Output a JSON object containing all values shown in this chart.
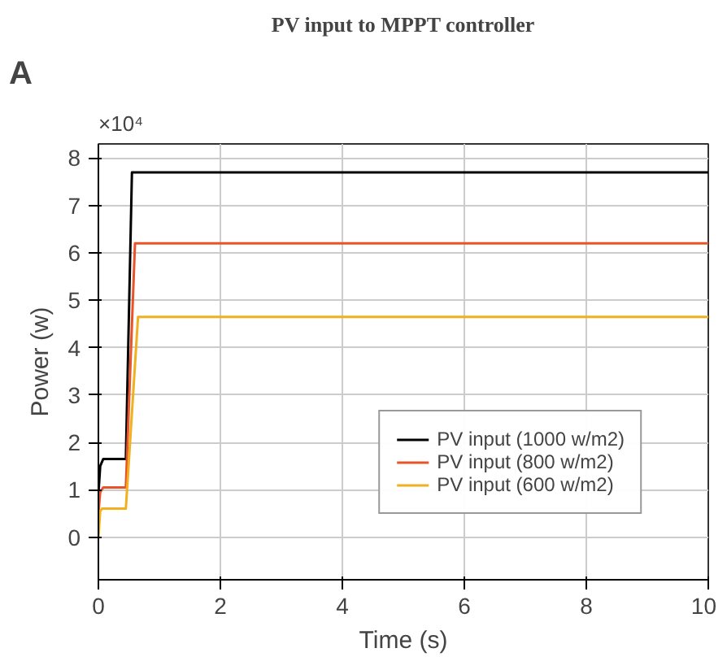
{
  "chart_data": {
    "type": "line",
    "title": "PV input to MPPT controller",
    "xlabel": "Time (s)",
    "ylabel": "Power (w)",
    "annotations": [
      "A",
      "×10⁴"
    ],
    "xlim": [
      0,
      10
    ],
    "xticks": [
      0,
      2,
      4,
      6,
      8,
      10
    ],
    "ylim": [
      -0.9,
      8.3
    ],
    "yticks": [
      0,
      1,
      2,
      3,
      4,
      5,
      6,
      7,
      8
    ],
    "grid": true,
    "legend": "bottom right",
    "marker": "none",
    "line_style": "solid",
    "series": [
      {
        "name": "PV input (1000 w/m2)",
        "color": "#000000",
        "x": [
          0,
          0.03,
          0.08,
          0.45,
          0.55,
          10
        ],
        "values": [
          0.9,
          1.5,
          1.65,
          1.65,
          7.7,
          7.7
        ]
      },
      {
        "name": "PV input (800 w/m2)",
        "color": "#e8532a",
        "x": [
          0,
          0.03,
          0.08,
          0.45,
          0.6,
          10
        ],
        "values": [
          0.5,
          0.95,
          1.05,
          1.05,
          6.2,
          6.2
        ]
      },
      {
        "name": "PV input (600 w/m2)",
        "color": "#f0b020",
        "x": [
          0,
          0.03,
          0.06,
          0.45,
          0.65,
          10
        ],
        "values": [
          0,
          0.55,
          0.6,
          0.6,
          4.65,
          4.65
        ]
      }
    ]
  }
}
